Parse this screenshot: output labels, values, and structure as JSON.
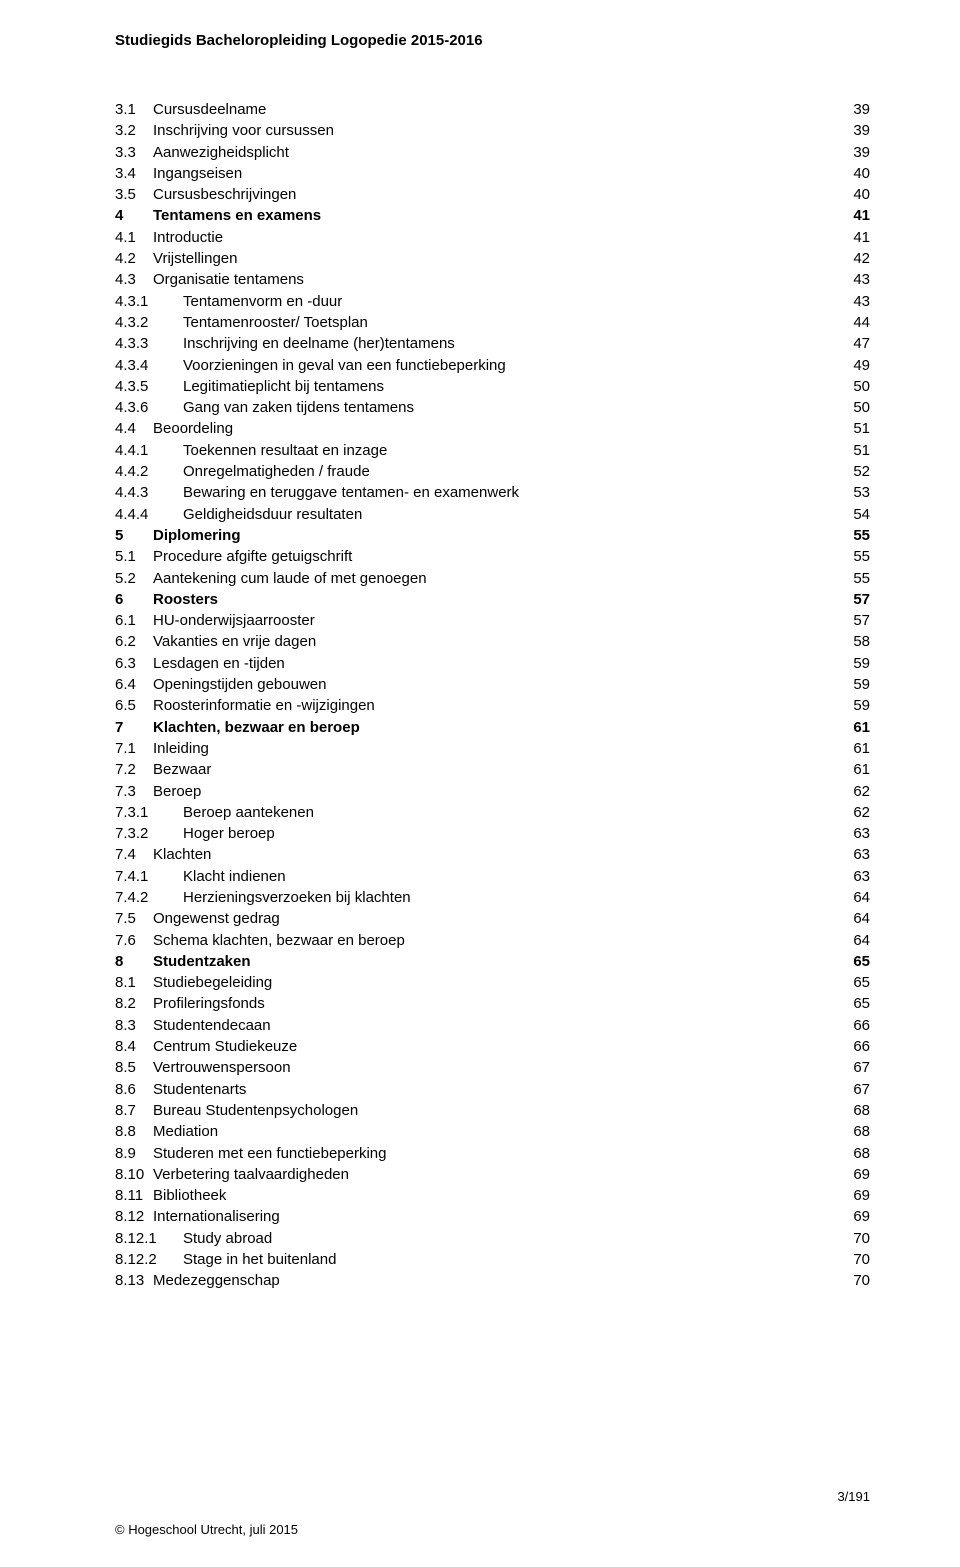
{
  "header": "Studiegids Bacheloropleiding Logopedie 2015-2016",
  "footer_right": "3/191",
  "footer_left": "© Hogeschool Utrecht, juli 2015",
  "entries": [
    {
      "num": "3.1",
      "title": "Cursusdeelname",
      "page": "39",
      "indent": 1,
      "bold": false,
      "dots": true
    },
    {
      "num": "3.2",
      "title": "Inschrijving voor cursussen",
      "page": "39",
      "indent": 1,
      "bold": false,
      "dots": true
    },
    {
      "num": "3.3",
      "title": "Aanwezigheidsplicht",
      "page": "39",
      "indent": 1,
      "bold": false,
      "dots": true
    },
    {
      "num": "3.4",
      "title": "Ingangseisen",
      "page": "40",
      "indent": 1,
      "bold": false,
      "dots": true
    },
    {
      "num": "3.5",
      "title": "Cursusbeschrijvingen",
      "page": "40",
      "indent": 1,
      "bold": false,
      "dots": true
    },
    {
      "num": "4",
      "title": "Tentamens en examens",
      "page": "41",
      "indent": 0,
      "bold": true,
      "dots": false
    },
    {
      "num": "4.1",
      "title": "Introductie",
      "page": "41",
      "indent": 1,
      "bold": false,
      "dots": true
    },
    {
      "num": "4.2",
      "title": "Vrijstellingen",
      "page": "42",
      "indent": 1,
      "bold": false,
      "dots": true
    },
    {
      "num": "4.3",
      "title": "Organisatie tentamens",
      "page": "43",
      "indent": 1,
      "bold": false,
      "dots": true
    },
    {
      "num": "4.3.1",
      "title": "Tentamenvorm en -duur",
      "page": "43",
      "indent": 2,
      "bold": false,
      "dots": true
    },
    {
      "num": "4.3.2",
      "title": "Tentamenrooster/ Toetsplan",
      "page": "44",
      "indent": 2,
      "bold": false,
      "dots": true
    },
    {
      "num": "4.3.3",
      "title": "Inschrijving en deelname (her)tentamens",
      "page": "47",
      "indent": 2,
      "bold": false,
      "dots": true
    },
    {
      "num": "4.3.4",
      "title": "Voorzieningen in geval van een functiebeperking",
      "page": "49",
      "indent": 2,
      "bold": false,
      "dots": true
    },
    {
      "num": "4.3.5",
      "title": "Legitimatieplicht bij tentamens",
      "page": "50",
      "indent": 2,
      "bold": false,
      "dots": true
    },
    {
      "num": "4.3.6",
      "title": "Gang van zaken tijdens tentamens",
      "page": "50",
      "indent": 2,
      "bold": false,
      "dots": true
    },
    {
      "num": "4.4",
      "title": "Beoordeling",
      "page": "51",
      "indent": 1,
      "bold": false,
      "dots": true
    },
    {
      "num": "4.4.1",
      "title": "Toekennen resultaat en inzage",
      "page": "51",
      "indent": 2,
      "bold": false,
      "dots": true
    },
    {
      "num": "4.4.2",
      "title": "Onregelmatigheden / fraude",
      "page": "52",
      "indent": 2,
      "bold": false,
      "dots": true
    },
    {
      "num": "4.4.3",
      "title": "Bewaring en teruggave tentamen- en examenwerk",
      "page": "53",
      "indent": 2,
      "bold": false,
      "dots": true
    },
    {
      "num": "4.4.4",
      "title": "Geldigheidsduur resultaten",
      "page": "54",
      "indent": 2,
      "bold": false,
      "dots": true
    },
    {
      "num": "5",
      "title": "Diplomering",
      "page": "55",
      "indent": 0,
      "bold": true,
      "dots": false
    },
    {
      "num": "5.1",
      "title": "Procedure afgifte getuigschrift",
      "page": "55",
      "indent": 1,
      "bold": false,
      "dots": true
    },
    {
      "num": "5.2",
      "title": "Aantekening cum laude of met genoegen",
      "page": "55",
      "indent": 1,
      "bold": false,
      "dots": true
    },
    {
      "num": "6",
      "title": "Roosters",
      "page": "57",
      "indent": 0,
      "bold": true,
      "dots": false
    },
    {
      "num": "6.1",
      "title": "HU-onderwijsjaarrooster",
      "page": "57",
      "indent": 1,
      "bold": false,
      "dots": true
    },
    {
      "num": "6.2",
      "title": "Vakanties en vrije dagen",
      "page": "58",
      "indent": 1,
      "bold": false,
      "dots": true
    },
    {
      "num": "6.3",
      "title": "Lesdagen en -tijden",
      "page": "59",
      "indent": 1,
      "bold": false,
      "dots": true
    },
    {
      "num": "6.4",
      "title": "Openingstijden gebouwen",
      "page": "59",
      "indent": 1,
      "bold": false,
      "dots": true
    },
    {
      "num": "6.5",
      "title": "Roosterinformatie en -wijzigingen",
      "page": "59",
      "indent": 1,
      "bold": false,
      "dots": true
    },
    {
      "num": "7",
      "title": "Klachten, bezwaar en beroep",
      "page": "61",
      "indent": 0,
      "bold": true,
      "dots": false
    },
    {
      "num": "7.1",
      "title": "Inleiding",
      "page": "61",
      "indent": 1,
      "bold": false,
      "dots": true
    },
    {
      "num": "7.2",
      "title": "Bezwaar",
      "page": "61",
      "indent": 1,
      "bold": false,
      "dots": true
    },
    {
      "num": "7.3",
      "title": "Beroep",
      "page": "62",
      "indent": 1,
      "bold": false,
      "dots": true
    },
    {
      "num": "7.3.1",
      "title": "Beroep aantekenen",
      "page": "62",
      "indent": 2,
      "bold": false,
      "dots": true
    },
    {
      "num": "7.3.2",
      "title": "Hoger beroep",
      "page": "63",
      "indent": 2,
      "bold": false,
      "dots": true
    },
    {
      "num": "7.4",
      "title": "Klachten",
      "page": "63",
      "indent": 1,
      "bold": false,
      "dots": true
    },
    {
      "num": "7.4.1",
      "title": "Klacht indienen",
      "page": "63",
      "indent": 2,
      "bold": false,
      "dots": true
    },
    {
      "num": "7.4.2",
      "title": "Herzieningsverzoeken bij klachten",
      "page": "64",
      "indent": 2,
      "bold": false,
      "dots": true
    },
    {
      "num": "7.5",
      "title": "Ongewenst gedrag",
      "page": "64",
      "indent": 1,
      "bold": false,
      "dots": true
    },
    {
      "num": "7.6",
      "title": "Schema klachten, bezwaar en beroep",
      "page": "64",
      "indent": 1,
      "bold": false,
      "dots": true
    },
    {
      "num": "8",
      "title": "Studentzaken",
      "page": "65",
      "indent": 0,
      "bold": true,
      "dots": false
    },
    {
      "num": "8.1",
      "title": "Studiebegeleiding",
      "page": "65",
      "indent": 1,
      "bold": false,
      "dots": true
    },
    {
      "num": "8.2",
      "title": "Profileringsfonds",
      "page": "65",
      "indent": 1,
      "bold": false,
      "dots": true
    },
    {
      "num": "8.3",
      "title": "Studentendecaan",
      "page": "66",
      "indent": 1,
      "bold": false,
      "dots": true
    },
    {
      "num": "8.4",
      "title": "Centrum Studiekeuze",
      "page": "66",
      "indent": 1,
      "bold": false,
      "dots": true
    },
    {
      "num": "8.5",
      "title": "Vertrouwenspersoon",
      "page": "67",
      "indent": 1,
      "bold": false,
      "dots": true
    },
    {
      "num": "8.6",
      "title": "Studentenarts",
      "page": "67",
      "indent": 1,
      "bold": false,
      "dots": true
    },
    {
      "num": "8.7",
      "title": "Bureau Studentenpsychologen",
      "page": "68",
      "indent": 1,
      "bold": false,
      "dots": true
    },
    {
      "num": "8.8",
      "title": "Mediation",
      "page": "68",
      "indent": 1,
      "bold": false,
      "dots": true
    },
    {
      "num": "8.9",
      "title": "Studeren met een functiebeperking",
      "page": "68",
      "indent": 1,
      "bold": false,
      "dots": true
    },
    {
      "num": "8.10",
      "title": "Verbetering taalvaardigheden",
      "page": "69",
      "indent": 1,
      "bold": false,
      "dots": true
    },
    {
      "num": "8.11",
      "title": "Bibliotheek",
      "page": "69",
      "indent": 1,
      "bold": false,
      "dots": true
    },
    {
      "num": "8.12",
      "title": "Internationalisering",
      "page": "69",
      "indent": 1,
      "bold": false,
      "dots": true
    },
    {
      "num": "8.12.1",
      "title": "Study abroad",
      "page": "70",
      "indent": 2,
      "bold": false,
      "dots": true
    },
    {
      "num": "8.12.2",
      "title": "Stage in het buitenland",
      "page": "70",
      "indent": 2,
      "bold": false,
      "dots": true
    },
    {
      "num": "8.13",
      "title": "Medezeggenschap",
      "page": "70",
      "indent": 1,
      "bold": false,
      "dots": true
    }
  ]
}
